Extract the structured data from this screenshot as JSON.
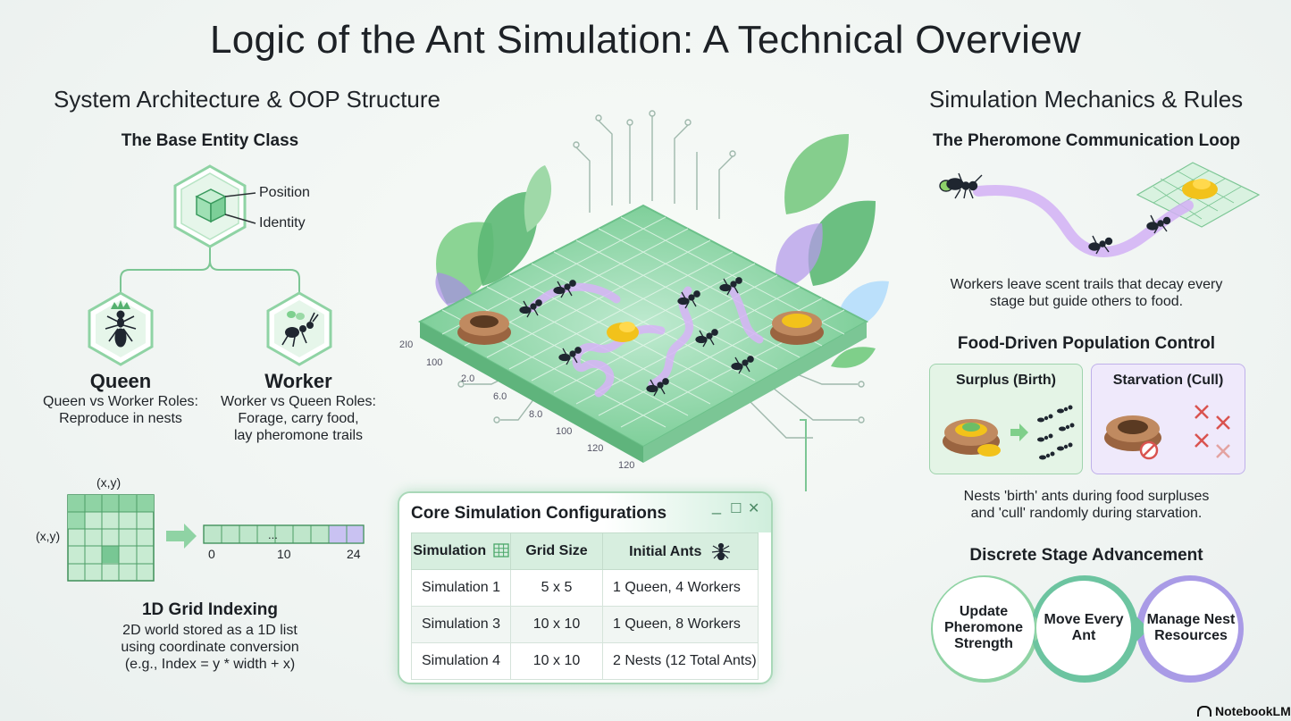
{
  "title": "Logic of the Ant Simulation: A Technical Overview",
  "left": {
    "heading": "System Architecture & OOP Structure",
    "base_entity": {
      "title": "The Base Entity Class",
      "attr_position": "Position",
      "attr_identity": "Identity"
    },
    "queen": {
      "name": "Queen",
      "desc_line1": "Queen vs Worker Roles:",
      "desc_line2": "Reproduce in nests"
    },
    "worker": {
      "name": "Worker",
      "desc_line1": "Worker vs Queen Roles:",
      "desc_line2": "Forage, carry food,",
      "desc_line3": "lay pheromone trails"
    },
    "grid_indexing": {
      "label_xy_top": "(x,y)",
      "label_xy_left": "(x,y)",
      "list_ellipsis": "...",
      "tick_0": "0",
      "tick_10": "10",
      "tick_24": "24",
      "title": "1D Grid Indexing",
      "desc_line1": "2D world stored as a 1D list",
      "desc_line2": "using coordinate conversion",
      "desc_line3": "(e.g., Index = y * width + x)"
    }
  },
  "center": {
    "board_labels": [
      "2I0",
      "100",
      "2.0",
      "6.0",
      "8.0",
      "100",
      "120",
      "120"
    ],
    "config_window": {
      "title": "Core Simulation Configurations",
      "controls": [
        "_",
        "☐",
        "✕"
      ],
      "columns": [
        "Simulation",
        "Grid Size",
        "Initial Ants"
      ],
      "rows": [
        {
          "simulation": "Simulation 1",
          "grid_size": "5 x 5",
          "initial_ants": "1 Queen, 4 Workers"
        },
        {
          "simulation": "Simulation 3",
          "grid_size": "10 x 10",
          "initial_ants": "1 Queen, 8 Workers"
        },
        {
          "simulation": "Simulation 4",
          "grid_size": "10 x 10",
          "initial_ants": "2 Nests (12 Total Ants)"
        }
      ]
    }
  },
  "right": {
    "heading": "Simulation Mechanics & Rules",
    "pheromone": {
      "title": "The Pheromone Communication Loop",
      "desc_line1": "Workers leave scent trails that decay every",
      "desc_line2": "stage but guide others to food."
    },
    "population": {
      "title": "Food-Driven Population Control",
      "surplus_label": "Surplus (Birth)",
      "starvation_label": "Starvation (Cull)",
      "desc_line1": "Nests 'birth' ants during food surpluses",
      "desc_line2": "and 'cull' randomly during starvation."
    },
    "stages": {
      "title": "Discrete Stage Advancement",
      "steps": [
        "Update Pheromone Strength",
        "Move Every Ant",
        "Manage Nest Resources"
      ]
    }
  },
  "branding": "NotebookLM",
  "colors": {
    "accent_green": "#5cba7d",
    "grid_green": "#8fd3a4",
    "trail_purple": "#c59cf0",
    "food_yellow": "#f2c21b",
    "nest_brown": "#a4714a",
    "surplus_bg": "#e4f4e6",
    "starvation_bg": "#efe9fb",
    "cull_red": "#d9534f"
  }
}
